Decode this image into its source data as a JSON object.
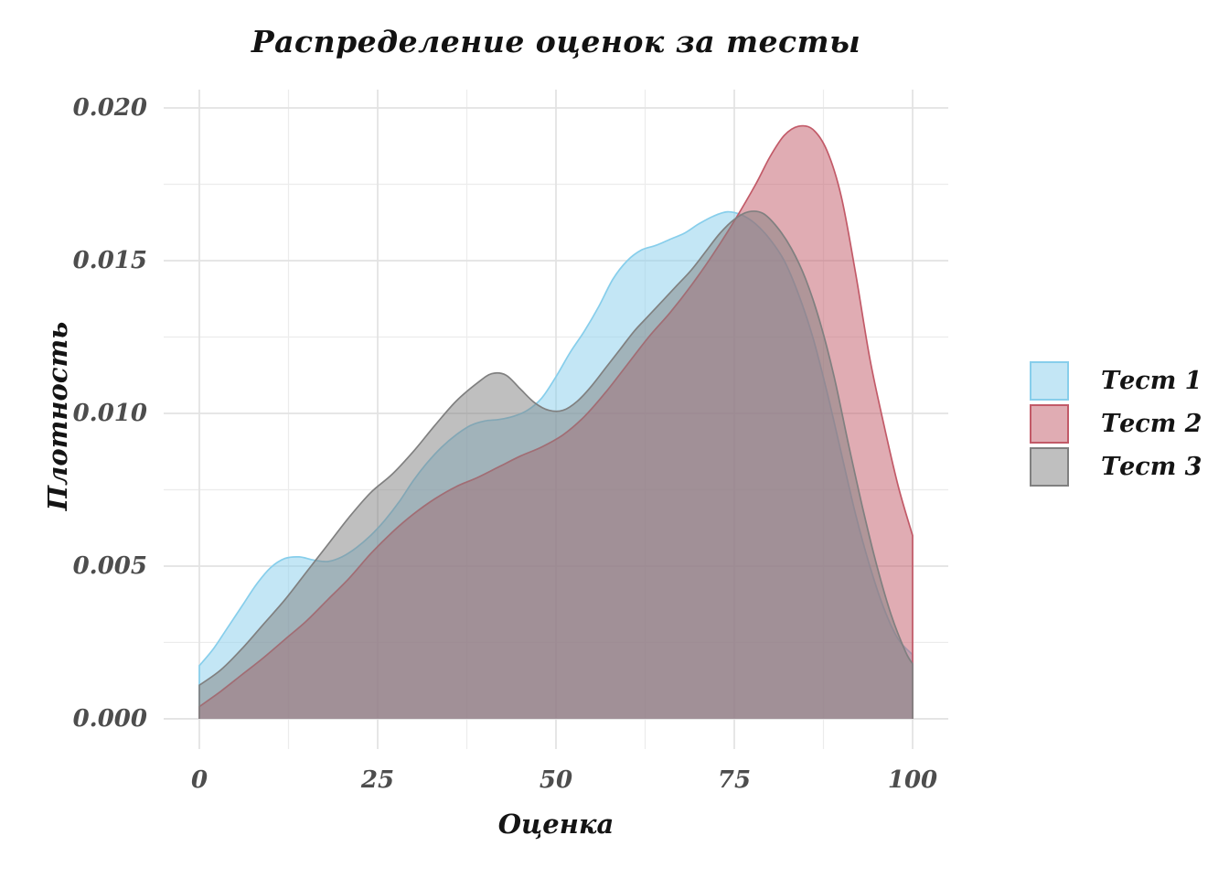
{
  "chart_data": {
    "type": "area",
    "subtype": "kde-density",
    "title": "Распределение оценок за тесты",
    "xlabel": "Оценка",
    "ylabel": "Плотность",
    "x_ticks": [
      {
        "value": 0,
        "label": "0"
      },
      {
        "value": 25,
        "label": "25"
      },
      {
        "value": 50,
        "label": "50"
      },
      {
        "value": 75,
        "label": "75"
      },
      {
        "value": 100,
        "label": "100"
      }
    ],
    "y_ticks": [
      {
        "value": 0.0,
        "label": "0.000"
      },
      {
        "value": 0.005,
        "label": "0.005"
      },
      {
        "value": 0.01,
        "label": "0.010"
      },
      {
        "value": 0.015,
        "label": "0.015"
      },
      {
        "value": 0.02,
        "label": "0.020"
      }
    ],
    "x_minor_gridlines": [
      12.5,
      37.5,
      62.5,
      87.5
    ],
    "y_minor_gridlines": [
      0.0025,
      0.0075,
      0.0125,
      0.0175
    ],
    "xlim_panel": [
      -5,
      105
    ],
    "ylim_panel": [
      -0.00099,
      0.0206
    ],
    "grid": "on",
    "grid_major_color": "#e3e3e3",
    "grid_minor_color": "#ececec",
    "panel_background": "#ffffff",
    "legend_position": "right",
    "fill_opacity": 0.5,
    "series": [
      {
        "name": "Тест 1",
        "stroke": "#87CEEB",
        "fill_rgb": "135,206,235",
        "points": [
          [
            0,
            0.00174
          ],
          [
            2,
            0.0023
          ],
          [
            4,
            0.003
          ],
          [
            6,
            0.0037
          ],
          [
            8,
            0.0044
          ],
          [
            10,
            0.00495
          ],
          [
            12,
            0.00525
          ],
          [
            14,
            0.0053
          ],
          [
            16,
            0.0052
          ],
          [
            18,
            0.00515
          ],
          [
            20,
            0.0053
          ],
          [
            22,
            0.0056
          ],
          [
            24,
            0.006
          ],
          [
            26,
            0.0065
          ],
          [
            28,
            0.0071
          ],
          [
            30,
            0.0078
          ],
          [
            32,
            0.0084
          ],
          [
            34,
            0.0089
          ],
          [
            36,
            0.0093
          ],
          [
            38,
            0.0096
          ],
          [
            40,
            0.00975
          ],
          [
            42,
            0.0098
          ],
          [
            44,
            0.0099
          ],
          [
            46,
            0.0101
          ],
          [
            48,
            0.0105
          ],
          [
            50,
            0.0112
          ],
          [
            52,
            0.012
          ],
          [
            54,
            0.0127
          ],
          [
            56,
            0.0135
          ],
          [
            58,
            0.0144
          ],
          [
            60,
            0.015
          ],
          [
            62,
            0.01535
          ],
          [
            64,
            0.0155
          ],
          [
            66,
            0.0157
          ],
          [
            68,
            0.0159
          ],
          [
            70,
            0.0162
          ],
          [
            72,
            0.01645
          ],
          [
            74,
            0.0166
          ],
          [
            76,
            0.0165
          ],
          [
            78,
            0.0162
          ],
          [
            80,
            0.0157
          ],
          [
            82,
            0.015
          ],
          [
            84,
            0.0139
          ],
          [
            86,
            0.0125
          ],
          [
            88,
            0.0107
          ],
          [
            90,
            0.0087
          ],
          [
            92,
            0.0067
          ],
          [
            94,
            0.005
          ],
          [
            96,
            0.0036
          ],
          [
            98,
            0.0026
          ],
          [
            100,
            0.0021
          ]
        ]
      },
      {
        "name": "Тест 2",
        "stroke": "#C25A68",
        "fill_rgb": "194,90,104",
        "points": [
          [
            0,
            0.0004
          ],
          [
            3,
            0.0009
          ],
          [
            6,
            0.00145
          ],
          [
            9,
            0.002
          ],
          [
            12,
            0.0026
          ],
          [
            15,
            0.0032
          ],
          [
            18,
            0.0039
          ],
          [
            21,
            0.0046
          ],
          [
            24,
            0.0054
          ],
          [
            27,
            0.0061
          ],
          [
            30,
            0.0067
          ],
          [
            33,
            0.0072
          ],
          [
            36,
            0.0076
          ],
          [
            39,
            0.0079
          ],
          [
            42,
            0.00825
          ],
          [
            45,
            0.0086
          ],
          [
            48,
            0.0089
          ],
          [
            51,
            0.0093
          ],
          [
            54,
            0.0099
          ],
          [
            57,
            0.0107
          ],
          [
            60,
            0.0116
          ],
          [
            63,
            0.0125
          ],
          [
            66,
            0.0133
          ],
          [
            69,
            0.0142
          ],
          [
            72,
            0.0152
          ],
          [
            75,
            0.0163
          ],
          [
            78,
            0.0175
          ],
          [
            80,
            0.0184
          ],
          [
            82,
            0.0191
          ],
          [
            84,
            0.0194
          ],
          [
            86,
            0.0193
          ],
          [
            88,
            0.0186
          ],
          [
            90,
            0.0171
          ],
          [
            92,
            0.0146
          ],
          [
            94,
            0.0118
          ],
          [
            96,
            0.0096
          ],
          [
            98,
            0.0076
          ],
          [
            100,
            0.006
          ]
        ]
      },
      {
        "name": "Тест 3",
        "stroke": "#808080",
        "fill_rgb": "128,128,128",
        "points": [
          [
            0,
            0.0011
          ],
          [
            3,
            0.0016
          ],
          [
            6,
            0.0023
          ],
          [
            9,
            0.0031
          ],
          [
            12,
            0.0039
          ],
          [
            15,
            0.0048
          ],
          [
            18,
            0.0057
          ],
          [
            21,
            0.0066
          ],
          [
            24,
            0.0074
          ],
          [
            27,
            0.008
          ],
          [
            30,
            0.00875
          ],
          [
            33,
            0.0096
          ],
          [
            36,
            0.0104
          ],
          [
            39,
            0.011
          ],
          [
            41,
            0.0113
          ],
          [
            43,
            0.01125
          ],
          [
            45,
            0.0108
          ],
          [
            47,
            0.01035
          ],
          [
            49,
            0.0101
          ],
          [
            51,
            0.0101
          ],
          [
            53,
            0.0104
          ],
          [
            55,
            0.0109
          ],
          [
            57,
            0.0115
          ],
          [
            59,
            0.0121
          ],
          [
            61,
            0.0127
          ],
          [
            63,
            0.0132
          ],
          [
            65,
            0.0137
          ],
          [
            67,
            0.0142
          ],
          [
            69,
            0.0147
          ],
          [
            71,
            0.0153
          ],
          [
            73,
            0.0159
          ],
          [
            75,
            0.01635
          ],
          [
            77,
            0.0166
          ],
          [
            79,
            0.01655
          ],
          [
            81,
            0.0161
          ],
          [
            83,
            0.0154
          ],
          [
            85,
            0.0144
          ],
          [
            87,
            0.013
          ],
          [
            89,
            0.0112
          ],
          [
            91,
            0.009
          ],
          [
            93,
            0.0069
          ],
          [
            95,
            0.005
          ],
          [
            97,
            0.0034
          ],
          [
            99,
            0.0022
          ],
          [
            100,
            0.0018
          ]
        ]
      }
    ]
  }
}
